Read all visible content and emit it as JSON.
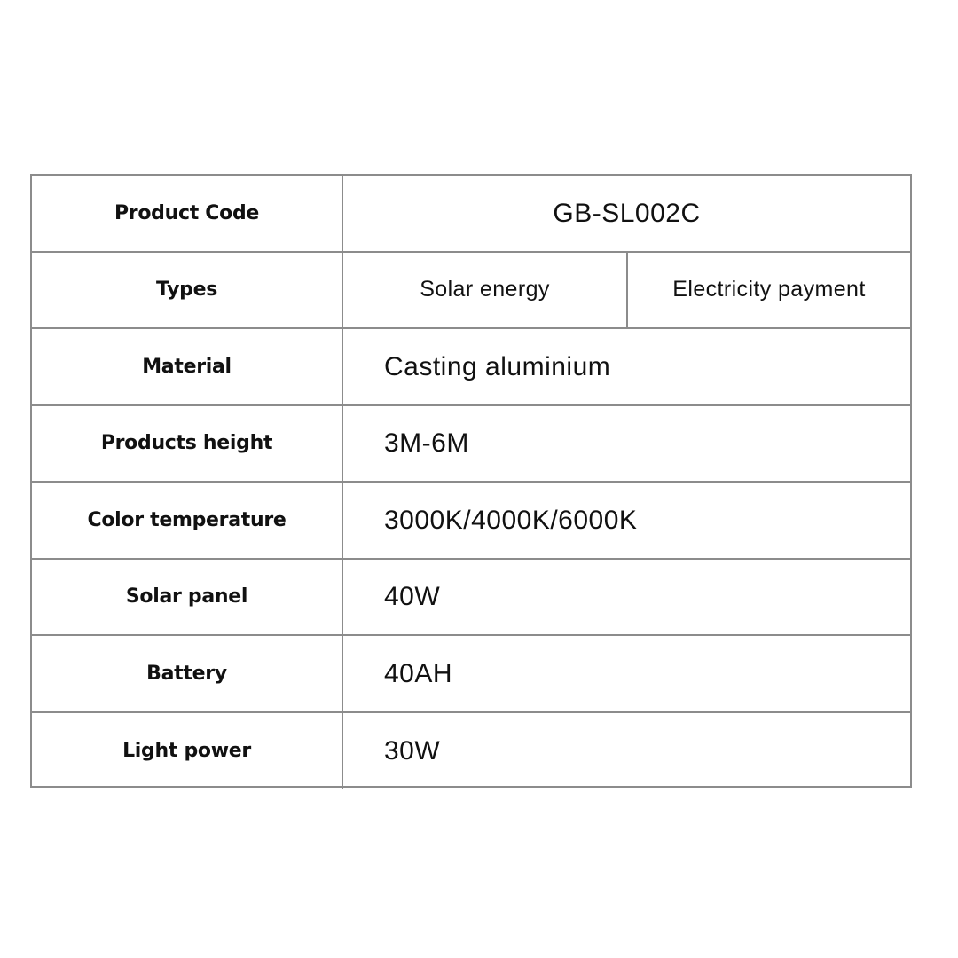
{
  "table": {
    "rows": [
      {
        "label": "Product Code",
        "value": "GB-SL002C"
      },
      {
        "label": "Types",
        "values": [
          "Solar energy",
          "Electricity payment"
        ]
      },
      {
        "label": "Material",
        "value": "Casting aluminium"
      },
      {
        "label": "Products height",
        "value": "3M-6M"
      },
      {
        "label": "Color temperature",
        "value": "3000K/4000K/6000K"
      },
      {
        "label": "Solar panel",
        "value": "40W"
      },
      {
        "label": "Battery",
        "value": "40AH"
      },
      {
        "label": "Light power",
        "value": "30W"
      }
    ]
  },
  "colors": {
    "border": "#8c8c8c",
    "text": "#111111"
  }
}
